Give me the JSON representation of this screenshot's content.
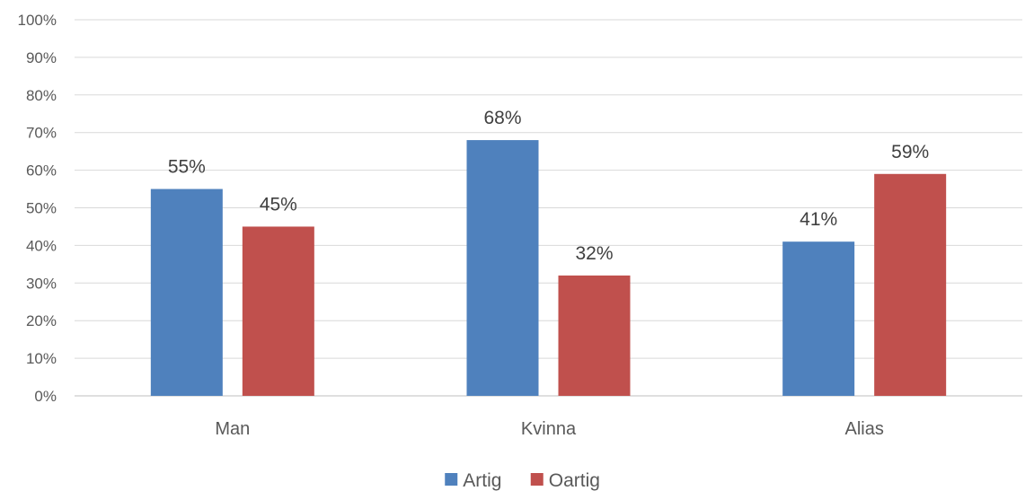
{
  "chart_data": {
    "type": "bar",
    "title": "",
    "xlabel": "",
    "ylabel": "",
    "categories": [
      "Man",
      "Kvinna",
      "Alias"
    ],
    "series": [
      {
        "name": "Artig",
        "values": [
          55,
          68,
          41
        ],
        "color": "#4f81bd"
      },
      {
        "name": "Oartig",
        "values": [
          45,
          32,
          59
        ],
        "color": "#c0504d"
      }
    ],
    "value_format": "percent",
    "ylim": [
      0,
      100
    ],
    "ytick_step": 10,
    "yticks": [
      "0%",
      "10%",
      "20%",
      "30%",
      "40%",
      "50%",
      "60%",
      "70%",
      "80%",
      "90%",
      "100%"
    ],
    "data_labels": [
      [
        "55%",
        "68%",
        "41%"
      ],
      [
        "45%",
        "32%",
        "59%"
      ]
    ],
    "grid": true,
    "legend_position": "bottom"
  }
}
